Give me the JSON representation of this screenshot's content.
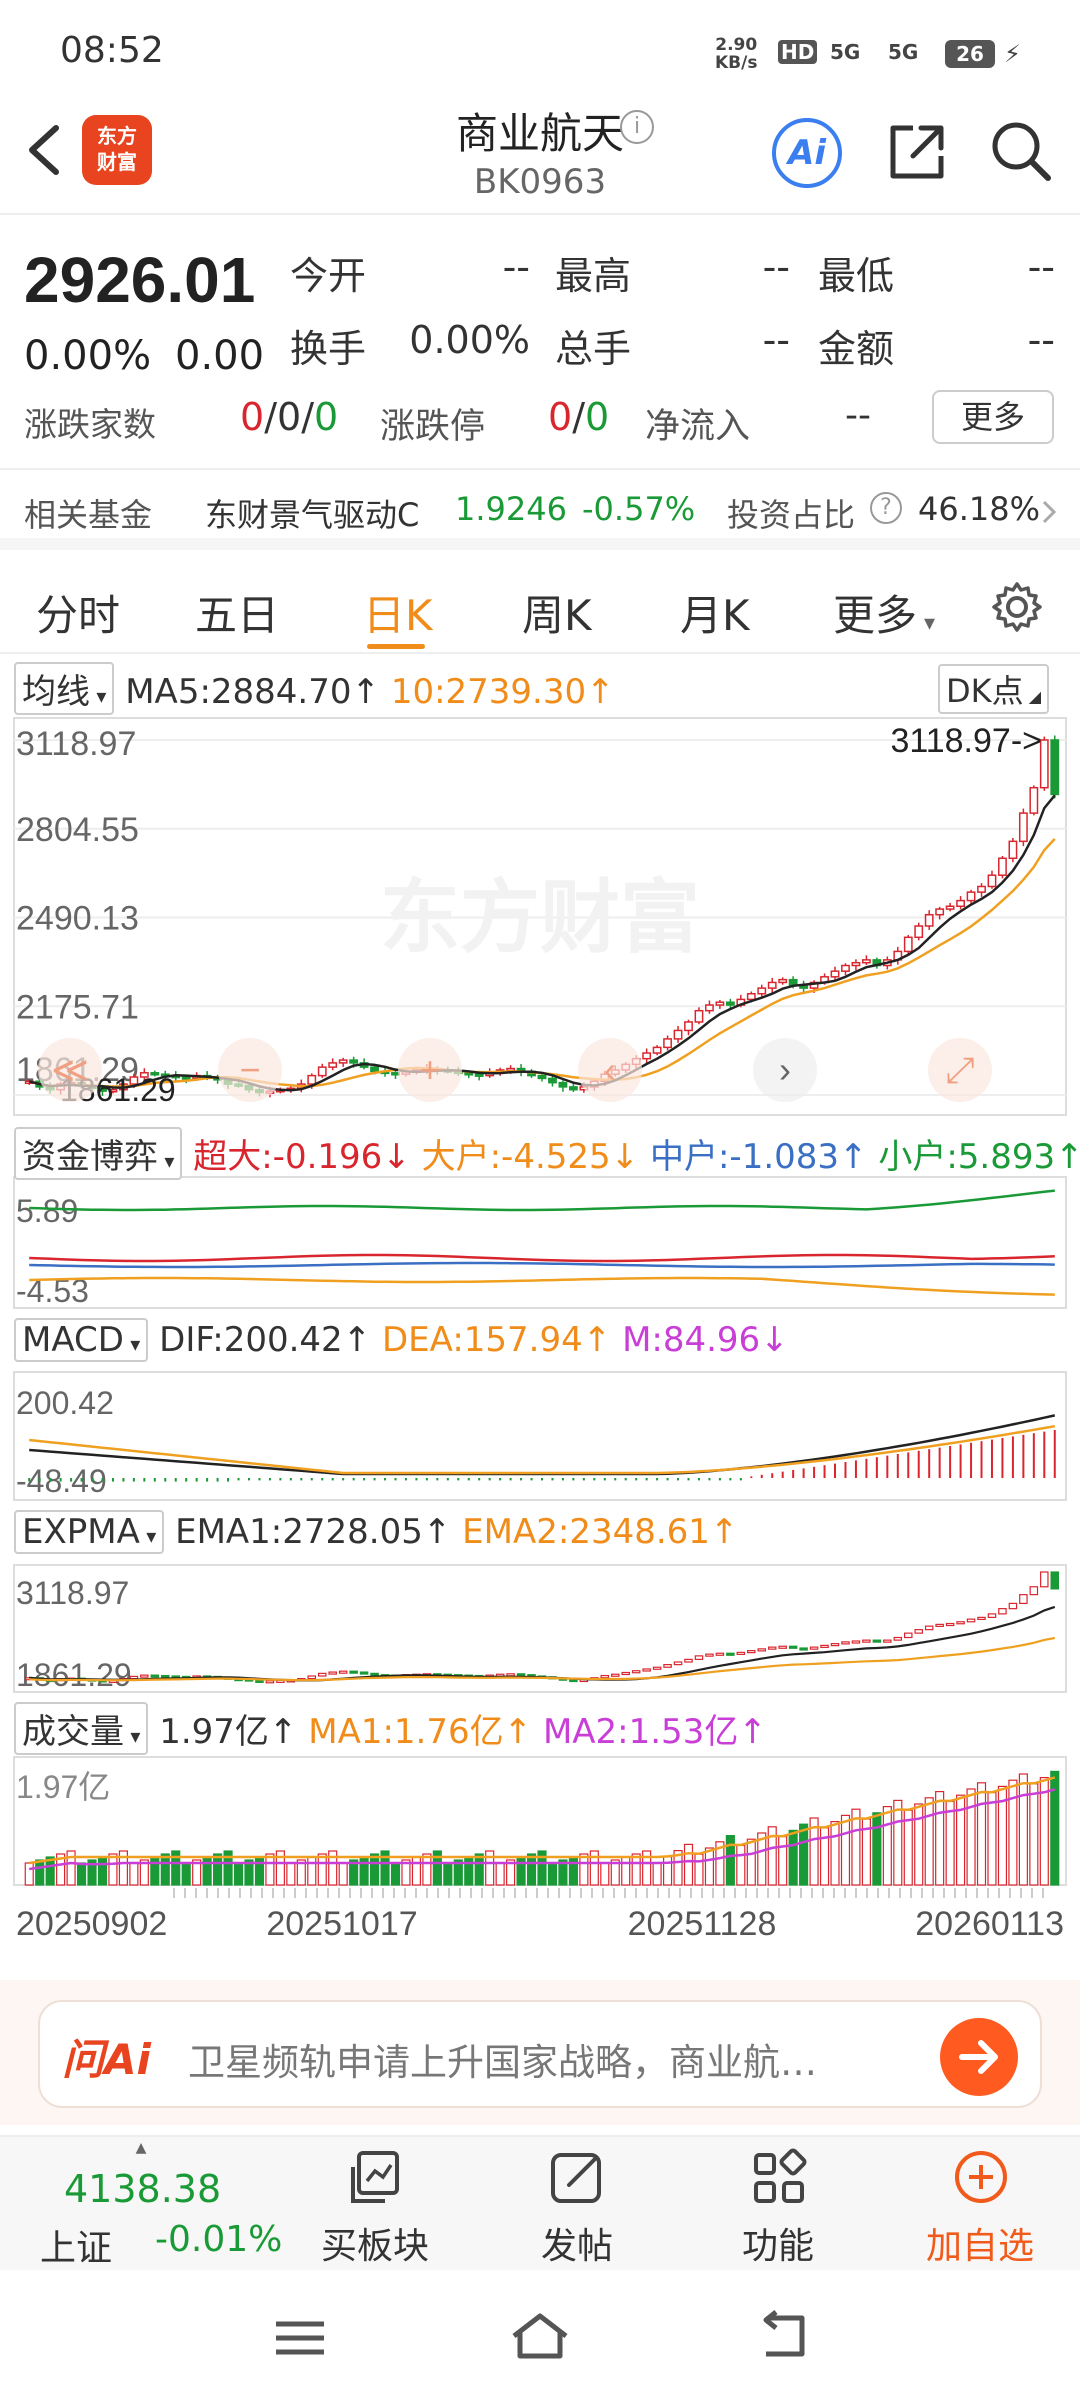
{
  "status": {
    "time": "08:52",
    "net_rate": "2.90",
    "net_unit": "KB/s",
    "hd": "HD",
    "signal1": "5G",
    "signal2": "5G",
    "battery": "26"
  },
  "header": {
    "logo_line1": "东方",
    "logo_line2": "财富",
    "title": "商业航天",
    "code": "BK0963",
    "ai_label": "Ai",
    "info": "i"
  },
  "quote": {
    "price": "2926.01",
    "change_pct": "0.00%",
    "change": "0.00",
    "fields": [
      {
        "label": "今开",
        "value": "--"
      },
      {
        "label": "最高",
        "value": "--"
      },
      {
        "label": "最低",
        "value": "--"
      },
      {
        "label": "换手",
        "value": "0.00%"
      },
      {
        "label": "总手",
        "value": "--"
      },
      {
        "label": "金额",
        "value": "--"
      }
    ],
    "adv_label": "涨跌家数",
    "adv_up": "0",
    "adv_flat": "0",
    "adv_down": "0",
    "sep": "/",
    "limit_label": "涨跌停",
    "limit_up": "0",
    "limit_down": "0",
    "netflow_label": "净流入",
    "netflow_value": "--",
    "more": "更多"
  },
  "fund": {
    "label": "相关基金",
    "name": "东财景气驱动C",
    "nav": "1.9246",
    "change": "-0.57%",
    "ratio_label": "投资占比",
    "ratio_q": "?",
    "ratio": "46.18%"
  },
  "tabs": [
    {
      "label": "分时"
    },
    {
      "label": "五日"
    },
    {
      "label": "日K"
    },
    {
      "label": "周K"
    },
    {
      "label": "月K"
    },
    {
      "label": "更多"
    }
  ],
  "main_panel": {
    "indicator": "均线",
    "ma5": "MA5:2884.70",
    "ma10": "10:2739.30",
    "arrow_up": "↑",
    "arrow_down": "↓",
    "dk_label": "DK点",
    "max_marker": "3118.97->",
    "min_marker": "1861.29",
    "y_ticks": [
      "3118.97",
      "2804.55",
      "2490.13",
      "2175.71",
      "1861.29"
    ],
    "watermark": "东方财富"
  },
  "fund_panel": {
    "indicator": "资金博弈",
    "super": "超大:-0.196",
    "large": "大户:-4.525",
    "mid": "中户:-1.083",
    "small": "小户:5.893",
    "y_top": "5.89",
    "y_bottom": "-4.53"
  },
  "macd_panel": {
    "indicator": "MACD",
    "dif": "DIF:200.42",
    "dea": "DEA:157.94",
    "m": "M:84.96",
    "y_top": "200.42",
    "y_bottom": "-48.49"
  },
  "expma_panel": {
    "indicator": "EXPMA",
    "ema1": "EMA1:2728.05",
    "ema2": "EMA2:2348.61",
    "y_top": "3118.97",
    "y_bottom": "1861.29"
  },
  "vol_panel": {
    "indicator": "成交量",
    "vol": "1.97亿",
    "ma1": "MA1:1.76亿",
    "ma2": "MA2:1.53亿",
    "y_top": "1.97亿"
  },
  "x_labels": [
    "20250902",
    "20251017",
    "20251128",
    "20260113"
  ],
  "ask": {
    "logo": "问Ai",
    "text": "卫星频轨申请上升国家战略，商业航…"
  },
  "bottom_nav": {
    "index_value": "4138.38",
    "index_name": "上证",
    "index_change": "-0.01%",
    "items": [
      {
        "label": "买板块"
      },
      {
        "label": "发帖"
      },
      {
        "label": "功能"
      },
      {
        "label": "加自选"
      }
    ]
  },
  "colors": {
    "up": "#d9262e",
    "down": "#1a9a36",
    "accent": "#f08c1a",
    "ma5": "#222222",
    "ma10": "#f0a020",
    "blue": "#3a6fc4",
    "magenta": "#c83ed6"
  },
  "chart_data": {
    "type": "candlestick",
    "x_range": [
      "20250902",
      "20260113"
    ],
    "y_range": [
      1861.29,
      3118.97
    ],
    "close_path": [
      1910,
      1890,
      1880,
      1900,
      1905,
      1895,
      1885,
      1875,
      1880,
      1900,
      1925,
      1940,
      1935,
      1930,
      1925,
      1920,
      1930,
      1925,
      1915,
      1900,
      1895,
      1880,
      1870,
      1875,
      1880,
      1885,
      1900,
      1930,
      1960,
      1975,
      1985,
      1975,
      1960,
      1945,
      1940,
      1935,
      1945,
      1950,
      1955,
      1950,
      1945,
      1940,
      1935,
      1930,
      1940,
      1950,
      1955,
      1945,
      1930,
      1920,
      1905,
      1890,
      1880,
      1890,
      1910,
      1935,
      1950,
      1970,
      1990,
      2010,
      2030,
      2060,
      2090,
      2120,
      2160,
      2180,
      2190,
      2180,
      2200,
      2220,
      2240,
      2260,
      2270,
      2250,
      2240,
      2260,
      2280,
      2300,
      2320,
      2330,
      2340,
      2320,
      2340,
      2370,
      2420,
      2460,
      2500,
      2520,
      2530,
      2550,
      2580,
      2600,
      2640,
      2700,
      2760,
      2860,
      2950,
      3118.97,
      2926.01
    ]
  }
}
